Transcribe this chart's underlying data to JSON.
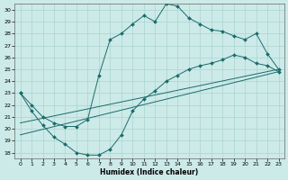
{
  "title": "",
  "xlabel": "Humidex (Indice chaleur)",
  "background_color": "#cceae8",
  "grid_color": "#aad4d2",
  "line_color": "#1a6b6b",
  "xlim": [
    -0.5,
    23.5
  ],
  "ylim": [
    17.5,
    30.5
  ],
  "xticks": [
    0,
    1,
    2,
    3,
    4,
    5,
    6,
    7,
    8,
    9,
    10,
    11,
    12,
    13,
    14,
    15,
    16,
    17,
    18,
    19,
    20,
    21,
    22,
    23
  ],
  "yticks": [
    18,
    19,
    20,
    21,
    22,
    23,
    24,
    25,
    26,
    27,
    28,
    29,
    30
  ],
  "curve1_x": [
    0,
    1,
    2,
    3,
    4,
    5,
    6,
    7,
    8,
    9,
    10,
    11,
    12,
    13,
    14,
    15,
    16,
    17,
    18,
    19,
    20,
    21,
    22,
    23
  ],
  "curve1_y": [
    23.0,
    21.5,
    20.3,
    19.3,
    18.7,
    18.0,
    17.8,
    17.8,
    18.3,
    19.5,
    21.5,
    22.5,
    23.2,
    24.0,
    24.5,
    25.0,
    25.3,
    25.5,
    25.8,
    26.2,
    26.0,
    25.5,
    25.3,
    24.8
  ],
  "curve2_x": [
    0,
    1,
    2,
    3,
    4,
    5,
    6,
    7,
    8,
    9,
    10,
    11,
    12,
    13,
    14,
    15,
    16,
    17,
    18,
    19,
    20,
    21,
    22,
    23
  ],
  "curve2_y": [
    23.0,
    22.0,
    21.0,
    20.5,
    20.2,
    20.2,
    20.8,
    24.5,
    27.5,
    28.0,
    28.8,
    29.5,
    29.0,
    30.5,
    30.3,
    29.3,
    28.8,
    28.3,
    28.2,
    27.8,
    27.5,
    28.0,
    26.3,
    25.0
  ],
  "curve3_x": [
    0,
    23
  ],
  "curve3_y": [
    20.5,
    25.0
  ],
  "curve4_x": [
    0,
    23
  ],
  "curve4_y": [
    19.5,
    24.8
  ]
}
